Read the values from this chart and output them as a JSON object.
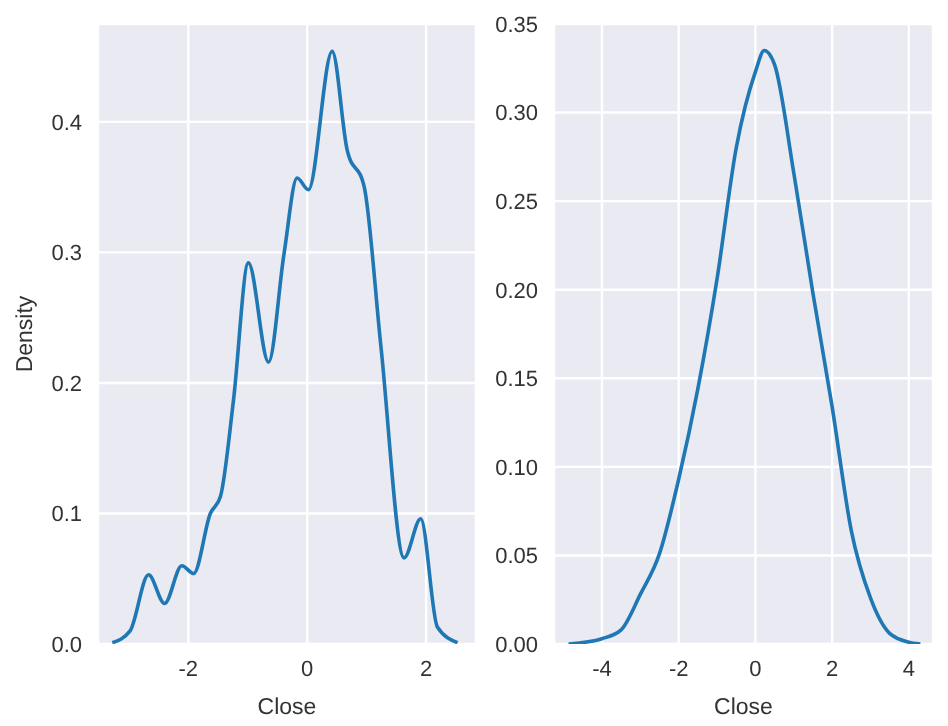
{
  "chart_data": [
    {
      "type": "line",
      "xlabel": "Close",
      "ylabel": "Density",
      "color": "#1f77b4",
      "grid": true,
      "x": [
        -3.28,
        -2.98,
        -2.67,
        -2.4,
        -2.11,
        -1.91,
        -1.63,
        -1.46,
        -1.24,
        -0.99,
        -0.65,
        -0.39,
        -0.17,
        0.02,
        0.42,
        0.67,
        0.96,
        1.24,
        1.63,
        1.91,
        2.19,
        2.53
      ],
      "values": [
        0.001,
        0.01,
        0.053,
        0.031,
        0.06,
        0.054,
        0.1,
        0.113,
        0.187,
        0.292,
        0.216,
        0.299,
        0.357,
        0.348,
        0.454,
        0.379,
        0.35,
        0.228,
        0.066,
        0.096,
        0.013,
        0.001
      ],
      "xlim": [
        -3.52,
        2.84
      ],
      "ylim": [
        0,
        0.475
      ],
      "xticks": [
        -2,
        0,
        2
      ],
      "yticks": [
        {
          "value": 0,
          "label": "0.0"
        },
        {
          "value": 0.1,
          "label": "0.1"
        },
        {
          "value": 0.2,
          "label": "0.2"
        },
        {
          "value": 0.3,
          "label": "0.3"
        },
        {
          "value": 0.4,
          "label": "0.4"
        }
      ]
    },
    {
      "type": "line",
      "xlabel": "Close",
      "color": "#1f77b4",
      "grid": true,
      "x": [
        -4.87,
        -4,
        -3.5,
        -3,
        -2.5,
        -2,
        -1.5,
        -1,
        -0.5,
        0,
        0.23,
        0.5,
        1,
        1.5,
        2,
        2.5,
        3,
        3.5,
        4,
        4.3
      ],
      "values": [
        0,
        0.003,
        0.008,
        0.028,
        0.051,
        0.093,
        0.144,
        0.206,
        0.28,
        0.323,
        0.335,
        0.327,
        0.266,
        0.198,
        0.134,
        0.064,
        0.026,
        0.006,
        0.001,
        0
      ],
      "xlim": [
        -5.25,
        4.63
      ],
      "ylim": [
        0,
        0.35
      ],
      "xticks": [
        -4,
        -2,
        0,
        2,
        4
      ],
      "yticks": [
        {
          "value": 0,
          "label": "0.00"
        },
        {
          "value": 0.05,
          "label": "0.05"
        },
        {
          "value": 0.1,
          "label": "0.10"
        },
        {
          "value": 0.15,
          "label": "0.15"
        },
        {
          "value": 0.2,
          "label": "0.20"
        },
        {
          "value": 0.25,
          "label": "0.25"
        },
        {
          "value": 0.3,
          "label": "0.30"
        },
        {
          "value": 0.35,
          "label": "0.35"
        }
      ]
    }
  ]
}
